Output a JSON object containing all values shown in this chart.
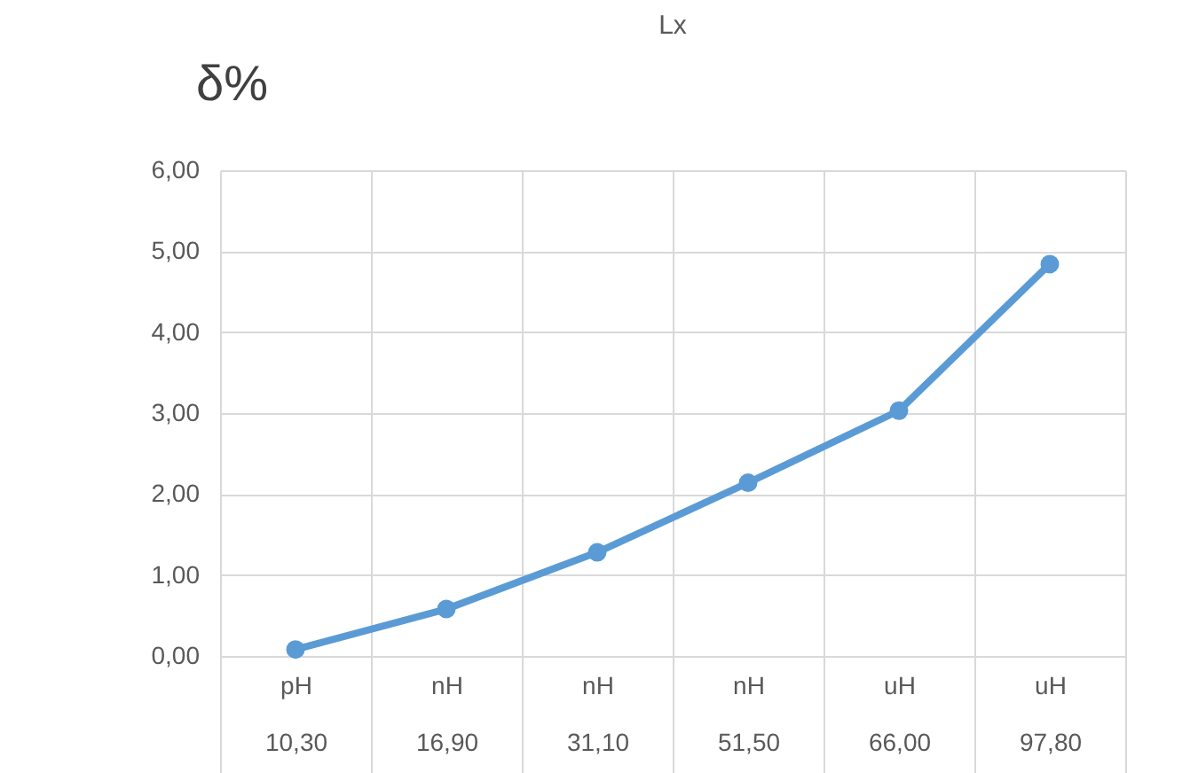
{
  "chart_data": {
    "type": "line",
    "title": "Lx",
    "ylabel": "δ%",
    "categories": [
      "pH\n10,30",
      "nH\n16,90",
      "nH\n31,10",
      "nH\n51,50",
      "uH\n66,00",
      "uH\n97,80"
    ],
    "series": [
      {
        "color": "#5b9bd5",
        "values": [
          0.08,
          0.58,
          1.28,
          2.14,
          3.03,
          4.84
        ]
      }
    ],
    "ylim": [
      0,
      6
    ],
    "yticks": [
      {
        "value": 0,
        "label": "0,00"
      },
      {
        "value": 1,
        "label": "1,00"
      },
      {
        "value": 2,
        "label": "2,00"
      },
      {
        "value": 3,
        "label": "3,00"
      },
      {
        "value": 4,
        "label": "4,00"
      },
      {
        "value": 5,
        "label": "5,00"
      },
      {
        "value": 6,
        "label": "6,00"
      }
    ],
    "grid": true,
    "marker": "circle",
    "line_style": "solid"
  }
}
